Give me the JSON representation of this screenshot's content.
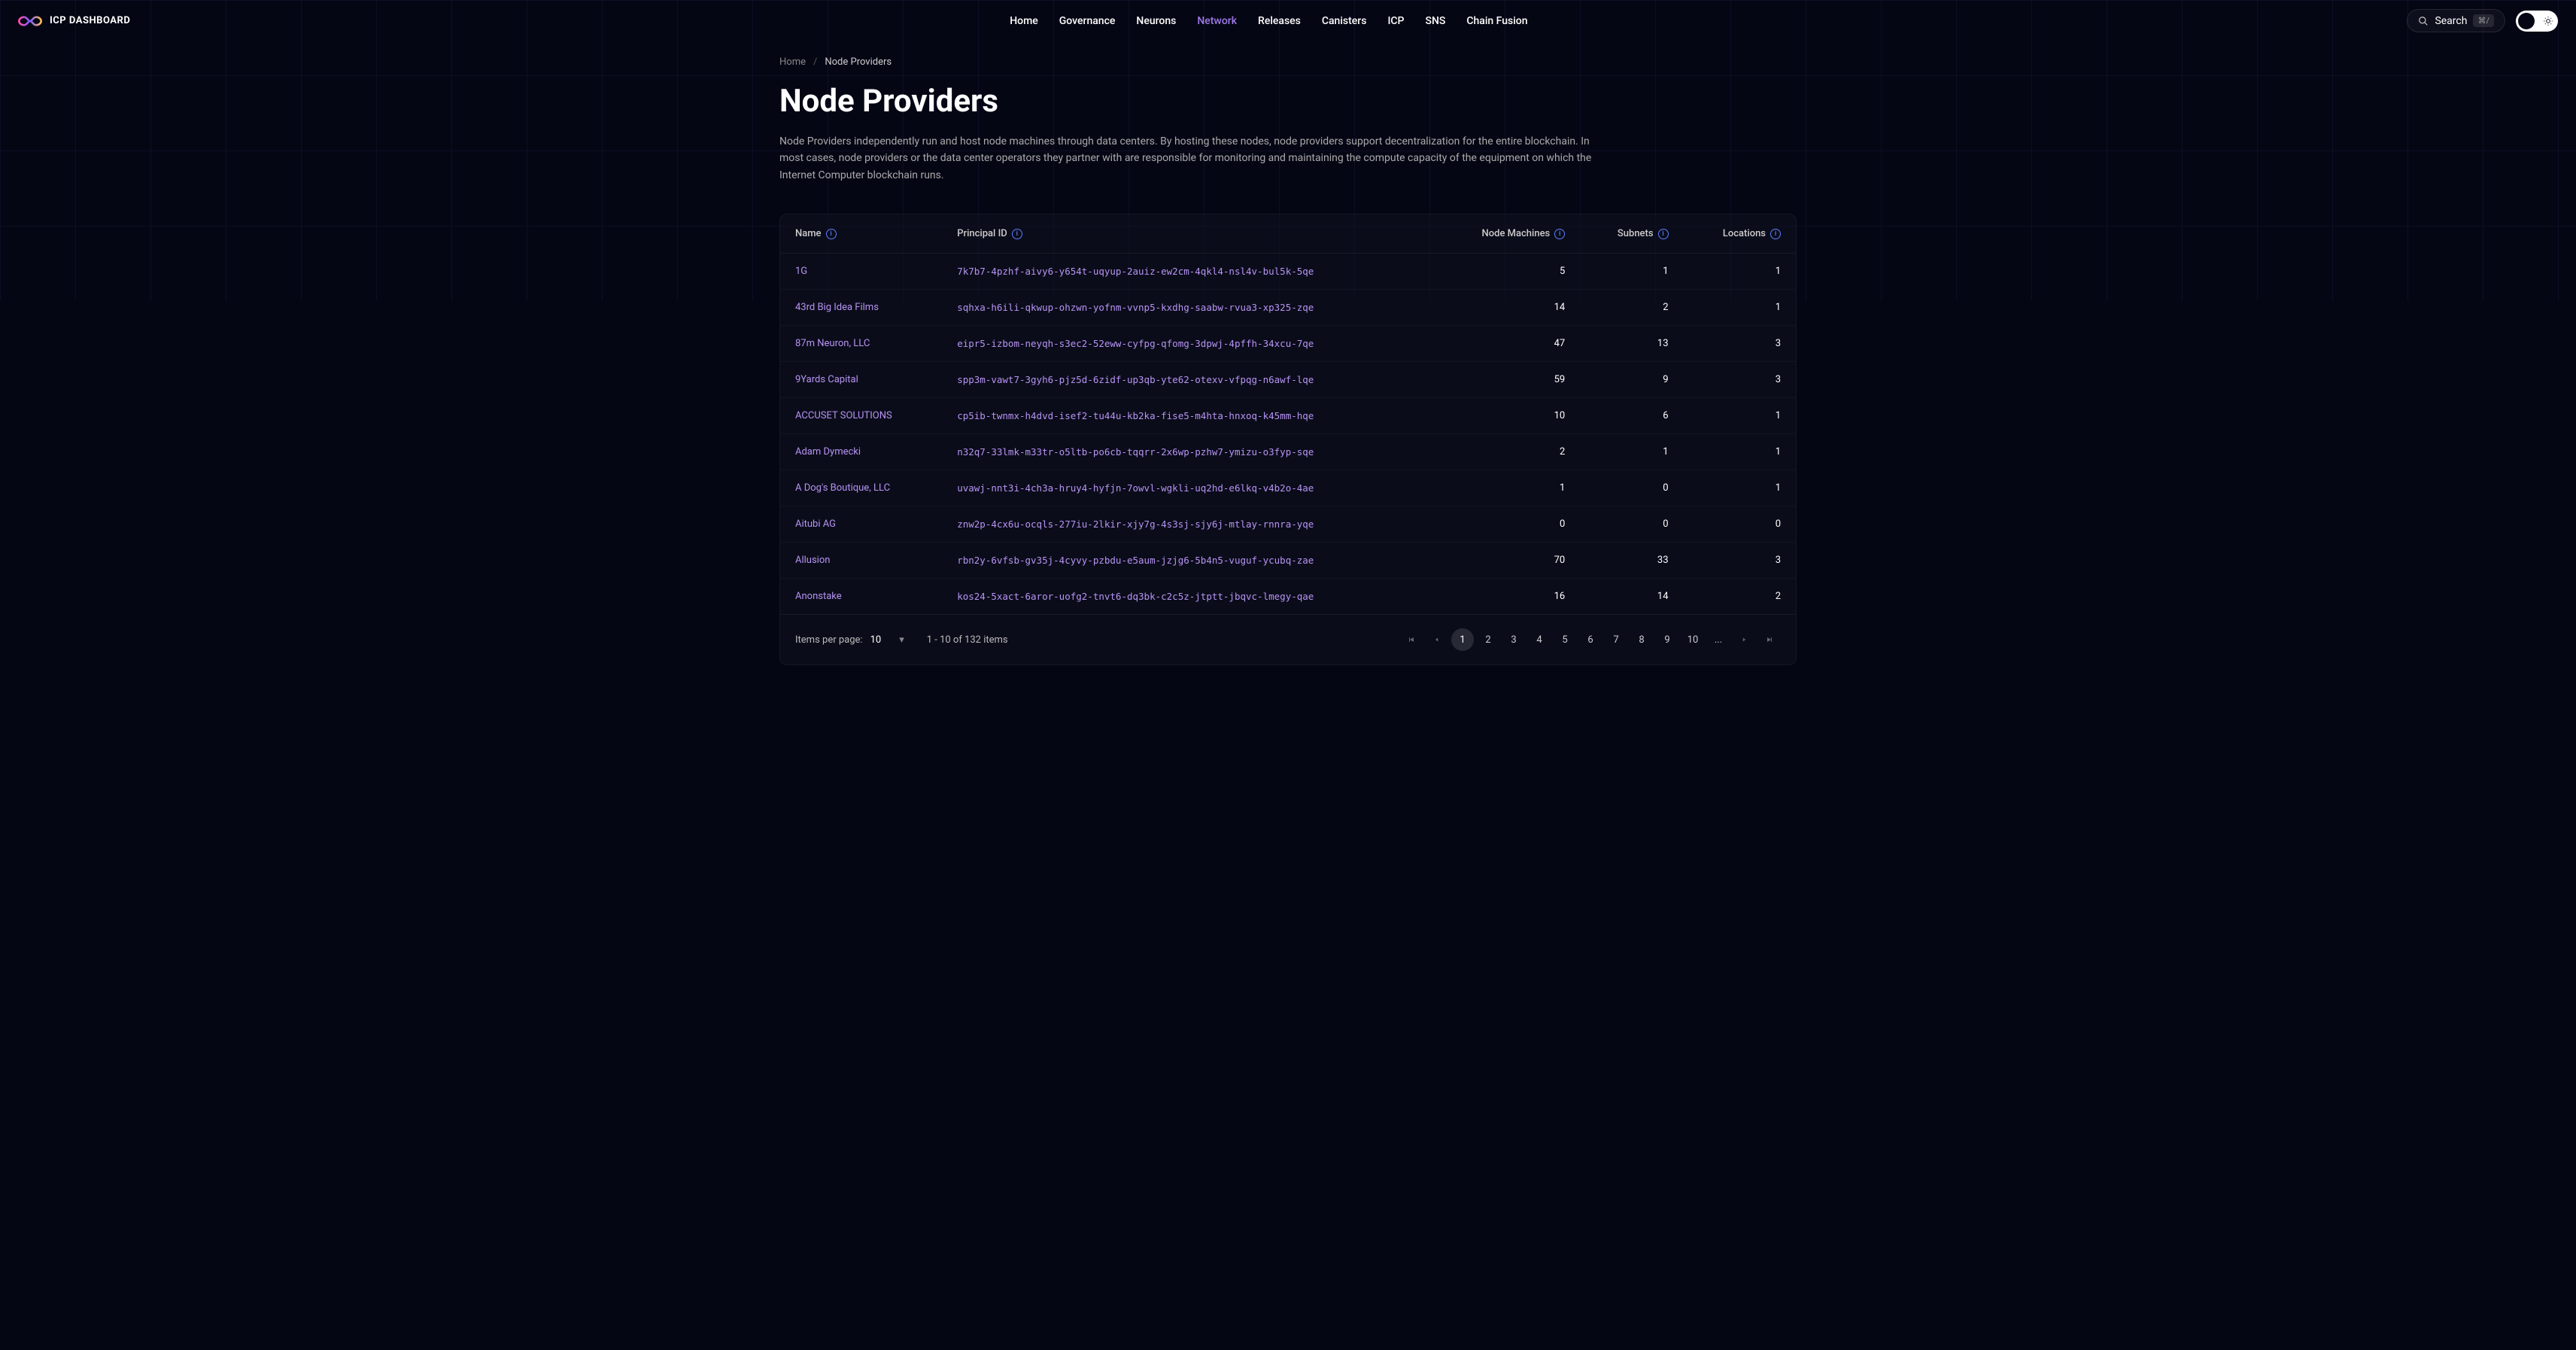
{
  "brand": "ICP DASHBOARD",
  "nav": {
    "items": [
      {
        "label": "Home",
        "active": false
      },
      {
        "label": "Governance",
        "active": false
      },
      {
        "label": "Neurons",
        "active": false
      },
      {
        "label": "Network",
        "active": true
      },
      {
        "label": "Releases",
        "active": false
      },
      {
        "label": "Canisters",
        "active": false
      },
      {
        "label": "ICP",
        "active": false
      },
      {
        "label": "SNS",
        "active": false
      },
      {
        "label": "Chain Fusion",
        "active": false
      }
    ]
  },
  "search": {
    "label": "Search",
    "kbd": "⌘/"
  },
  "breadcrumb": {
    "home": "Home",
    "sep": "/",
    "current": "Node Providers"
  },
  "page": {
    "title": "Node Providers",
    "description": "Node Providers independently run and host node machines through data centers. By hosting these nodes, node providers support decentralization for the entire blockchain. In most cases, node providers or the data center operators they partner with are responsible for monitoring and maintaining the compute capacity of the equipment on which the Internet Computer blockchain runs."
  },
  "table": {
    "columns": {
      "name": "Name",
      "principal": "Principal ID",
      "machines": "Node Machines",
      "subnets": "Subnets",
      "locations": "Locations"
    },
    "rows": [
      {
        "name": "1G",
        "principal": "7k7b7-4pzhf-aivy6-y654t-uqyup-2auiz-ew2cm-4qkl4-nsl4v-bul5k-5qe",
        "machines": "5",
        "subnets": "1",
        "locations": "1"
      },
      {
        "name": "43rd Big Idea Films",
        "principal": "sqhxa-h6ili-qkwup-ohzwn-yofnm-vvnp5-kxdhg-saabw-rvua3-xp325-zqe",
        "machines": "14",
        "subnets": "2",
        "locations": "1"
      },
      {
        "name": "87m Neuron, LLC",
        "principal": "eipr5-izbom-neyqh-s3ec2-52eww-cyfpg-qfomg-3dpwj-4pffh-34xcu-7qe",
        "machines": "47",
        "subnets": "13",
        "locations": "3"
      },
      {
        "name": "9Yards Capital",
        "principal": "spp3m-vawt7-3gyh6-pjz5d-6zidf-up3qb-yte62-otexv-vfpqg-n6awf-lqe",
        "machines": "59",
        "subnets": "9",
        "locations": "3"
      },
      {
        "name": "ACCUSET SOLUTIONS",
        "principal": "cp5ib-twnmx-h4dvd-isef2-tu44u-kb2ka-fise5-m4hta-hnxoq-k45mm-hqe",
        "machines": "10",
        "subnets": "6",
        "locations": "1"
      },
      {
        "name": "Adam Dymecki",
        "principal": "n32q7-33lmk-m33tr-o5ltb-po6cb-tqqrr-2x6wp-pzhw7-ymizu-o3fyp-sqe",
        "machines": "2",
        "subnets": "1",
        "locations": "1"
      },
      {
        "name": "A Dog's Boutique, LLC",
        "principal": "uvawj-nnt3i-4ch3a-hruy4-hyfjn-7owvl-wgkli-uq2hd-e6lkq-v4b2o-4ae",
        "machines": "1",
        "subnets": "0",
        "locations": "1"
      },
      {
        "name": "Aitubi AG",
        "principal": "znw2p-4cx6u-ocqls-277iu-2lkir-xjy7g-4s3sj-sjy6j-mtlay-rnnra-yqe",
        "machines": "0",
        "subnets": "0",
        "locations": "0"
      },
      {
        "name": "Allusion",
        "principal": "rbn2y-6vfsb-gv35j-4cyvy-pzbdu-e5aum-jzjg6-5b4n5-vuguf-ycubq-zae",
        "machines": "70",
        "subnets": "33",
        "locations": "3"
      },
      {
        "name": "Anonstake",
        "principal": "kos24-5xact-6aror-uofg2-tnvt6-dq3bk-c2c5z-jtptt-jbqvc-lmegy-qae",
        "machines": "16",
        "subnets": "14",
        "locations": "2"
      }
    ]
  },
  "pagination": {
    "perPageLabel": "Items per page:",
    "perPageValue": "10",
    "rangeText": "1 - 10 of 132 items",
    "pages": [
      "1",
      "2",
      "3",
      "4",
      "5",
      "6",
      "7",
      "8",
      "9",
      "10",
      "..."
    ],
    "currentPage": "1"
  },
  "colors": {
    "accent_purple": "#b794f4",
    "nav_active": "#9f7aea",
    "info_blue": "#5b7fff",
    "background": "#050614"
  }
}
